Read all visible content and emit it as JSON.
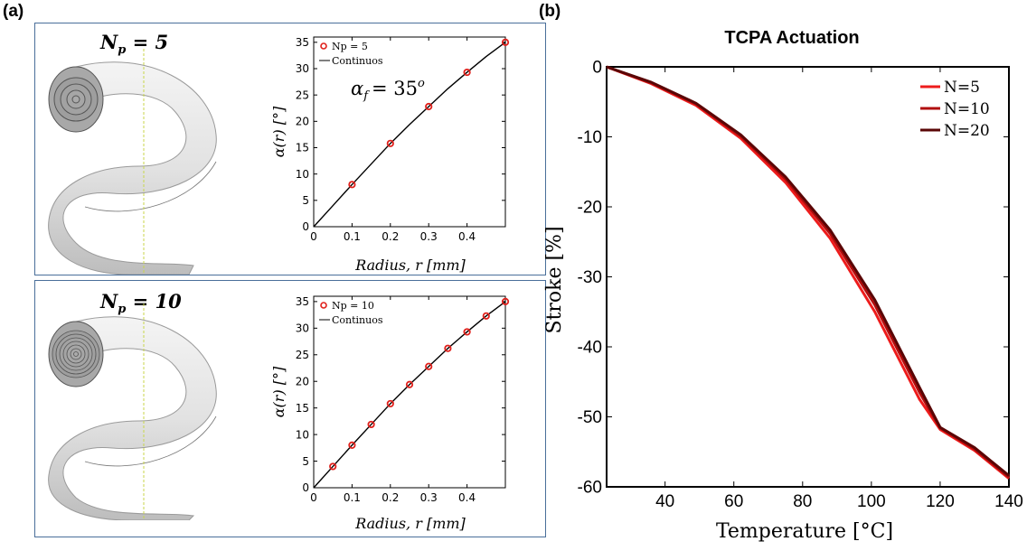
{
  "figure": {
    "label_a": "(a)",
    "label_b": "(b)"
  },
  "panel_top": {
    "np_symbol": "N",
    "np_sub": "p",
    "np_value": "= 5",
    "annotation_symbol": "α",
    "annotation_sub": "f",
    "annotation_eq": "= 35",
    "annotation_sup": "o"
  },
  "panel_bottom": {
    "np_symbol": "N",
    "np_sub": "p",
    "np_value": "= 10"
  },
  "chart_data": [
    {
      "id": "alpha_np5",
      "type": "scatter",
      "title": "",
      "xlabel": "Radius, r [mm]",
      "ylabel": "α(r) [°]",
      "xlim": [
        0,
        0.5
      ],
      "ylim": [
        0,
        36
      ],
      "xticks": [
        0,
        0.1,
        0.2,
        0.3,
        0.4
      ],
      "yticks": [
        0,
        5,
        10,
        15,
        20,
        25,
        30,
        35
      ],
      "legend": [
        "Np = 5",
        "Continuos"
      ],
      "legend_position": "top-left",
      "series": [
        {
          "name": "Np = 5",
          "kind": "markers",
          "color": "#e0201b",
          "x": [
            0.1,
            0.2,
            0.3,
            0.4,
            0.5
          ],
          "y": [
            8.0,
            15.8,
            22.8,
            29.3,
            35.0
          ]
        },
        {
          "name": "Continuos",
          "kind": "line",
          "color": "#000000",
          "x": [
            0,
            0.05,
            0.1,
            0.15,
            0.2,
            0.25,
            0.3,
            0.35,
            0.4,
            0.45,
            0.5
          ],
          "y": [
            0,
            4.0,
            8.0,
            11.9,
            15.8,
            19.4,
            22.8,
            26.2,
            29.3,
            32.3,
            35.0
          ]
        }
      ]
    },
    {
      "id": "alpha_np10",
      "type": "scatter",
      "title": "",
      "xlabel": "Radius, r [mm]",
      "ylabel": "α(r) [°]",
      "xlim": [
        0,
        0.5
      ],
      "ylim": [
        0,
        36
      ],
      "xticks": [
        0,
        0.1,
        0.2,
        0.3,
        0.4
      ],
      "yticks": [
        0,
        5,
        10,
        15,
        20,
        25,
        30,
        35
      ],
      "legend": [
        "Np = 10",
        "Continuos"
      ],
      "legend_position": "top-left",
      "series": [
        {
          "name": "Np = 10",
          "kind": "markers",
          "color": "#e0201b",
          "x": [
            0.05,
            0.1,
            0.15,
            0.2,
            0.25,
            0.3,
            0.35,
            0.4,
            0.45,
            0.5
          ],
          "y": [
            4.0,
            8.0,
            11.9,
            15.8,
            19.4,
            22.8,
            26.2,
            29.3,
            32.3,
            35.0
          ]
        },
        {
          "name": "Continuos",
          "kind": "line",
          "color": "#000000",
          "x": [
            0,
            0.05,
            0.1,
            0.15,
            0.2,
            0.25,
            0.3,
            0.35,
            0.4,
            0.45,
            0.5
          ],
          "y": [
            0,
            4.0,
            8.0,
            11.9,
            15.8,
            19.4,
            22.8,
            26.2,
            29.3,
            32.3,
            35.0
          ]
        }
      ]
    },
    {
      "id": "tcpa_actuation",
      "type": "line",
      "title": "TCPA Actuation",
      "xlabel": "Temperature [°C]",
      "ylabel": "Stroke [%]",
      "xlim": [
        23,
        140
      ],
      "ylim": [
        -60,
        0
      ],
      "xticks": [
        40,
        60,
        80,
        100,
        120,
        140
      ],
      "yticks": [
        0,
        -10,
        -20,
        -30,
        -40,
        -50,
        -60
      ],
      "legend": [
        "N=5",
        "N=10",
        "N=20"
      ],
      "legend_position": "top-right",
      "series": [
        {
          "name": "N=5",
          "color": "#ee1c1c",
          "x": [
            23,
            36,
            49,
            62,
            75,
            88,
            101,
            114,
            120,
            130,
            140
          ],
          "y": [
            0,
            -2.4,
            -5.5,
            -10.2,
            -16.5,
            -24.5,
            -35.0,
            -47.5,
            -51.8,
            -54.8,
            -58.8
          ]
        },
        {
          "name": "N=10",
          "color": "#b00c0c",
          "x": [
            23,
            36,
            49,
            62,
            75,
            88,
            101,
            114,
            120,
            130,
            140
          ],
          "y": [
            0,
            -2.3,
            -5.3,
            -9.9,
            -16.0,
            -23.8,
            -34.0,
            -46.5,
            -51.6,
            -54.6,
            -58.6
          ]
        },
        {
          "name": "N=20",
          "color": "#5a0606",
          "x": [
            23,
            36,
            49,
            62,
            75,
            88,
            101,
            114,
            120,
            130,
            140
          ],
          "y": [
            0,
            -2.2,
            -5.2,
            -9.7,
            -15.7,
            -23.3,
            -33.3,
            -45.8,
            -51.5,
            -54.4,
            -58.4
          ]
        }
      ]
    }
  ]
}
